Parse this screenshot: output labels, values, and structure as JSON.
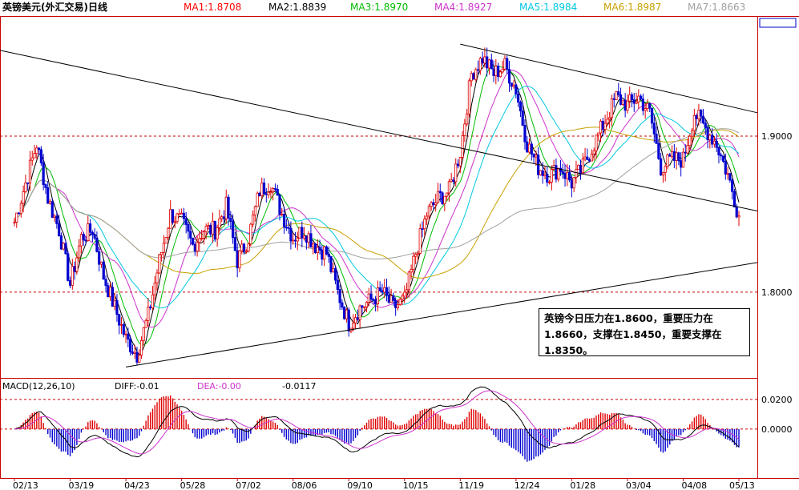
{
  "header": {
    "title": "英镑美元(外汇交易)日线",
    "ma": [
      {
        "label": "MA1:1.8708",
        "color": "#ff0000"
      },
      {
        "label": "MA2:1.8839",
        "color": "#000000"
      },
      {
        "label": "MA3:1.8970",
        "color": "#00bb00"
      },
      {
        "label": "MA4:1.8927",
        "color": "#cc33cc"
      },
      {
        "label": "MA5:1.8984",
        "color": "#00c8e0"
      },
      {
        "label": "MA6:1.8987",
        "color": "#c8a000"
      },
      {
        "label": "MA7:1.8663",
        "color": "#a0a0a0"
      }
    ]
  },
  "note": {
    "lines": [
      "英镑今日压力在1.8600，重要压力在",
      "1.8660，支撑在1.8450，重要支撑在",
      "1.8350。"
    ]
  },
  "macd": {
    "label": "MACD(12,26,10)",
    "diff": "DIFF:-0.01",
    "dea": "DEA:-0.00",
    "value": "-0.0117"
  },
  "chart_data": [
    {
      "type": "candlestick",
      "title": "英镑美元(外汇交易)日线",
      "y_ticks": [
        "1.8000",
        "1.9000"
      ],
      "x_ticks": [
        "02/13",
        "03/19",
        "04/23",
        "05/28",
        "07/02",
        "08/06",
        "09/10",
        "10/15",
        "11/19",
        "12/24",
        "01/28",
        "03/04",
        "04/08",
        "05/13"
      ],
      "ylim": [
        1.745,
        1.9765
      ],
      "last_close": 1.849,
      "trendlines": [
        {
          "label": "down-channel-upper",
          "from": [
            "start",
            1.955
          ],
          "to": [
            "05/13",
            1.852
          ]
        },
        {
          "label": "down-channel-right-upper",
          "from": [
            "11/19",
            1.959
          ],
          "to": [
            "05/13",
            1.915
          ]
        },
        {
          "label": "up-support",
          "from": [
            "04/23",
            1.752
          ],
          "to": [
            "05/13",
            1.819
          ]
        }
      ],
      "reference_lines": [
        1.8,
        1.9
      ],
      "series": [
        {
          "name": "MA1",
          "value": 1.8708
        },
        {
          "name": "MA2",
          "value": 1.8839
        },
        {
          "name": "MA3",
          "value": 1.897
        },
        {
          "name": "MA4",
          "value": 1.8927
        },
        {
          "name": "MA5",
          "value": 1.8984
        },
        {
          "name": "MA6",
          "value": 1.8987
        },
        {
          "name": "MA7",
          "value": 1.8663
        }
      ],
      "price_path": [
        [
          "02/13",
          1.845
        ],
        [
          "02/20",
          1.87
        ],
        [
          "02/27",
          1.895
        ],
        [
          "03/05",
          1.86
        ],
        [
          "03/12",
          1.84
        ],
        [
          "03/19",
          1.805
        ],
        [
          "03/26",
          1.835
        ],
        [
          "04/02",
          1.84
        ],
        [
          "04/09",
          1.81
        ],
        [
          "04/16",
          1.79
        ],
        [
          "04/23",
          1.77
        ],
        [
          "04/30",
          1.76
        ],
        [
          "05/07",
          1.785
        ],
        [
          "05/14",
          1.82
        ],
        [
          "05/21",
          1.85
        ],
        [
          "05/28",
          1.845
        ],
        [
          "06/04",
          1.83
        ],
        [
          "06/11",
          1.84
        ],
        [
          "06/18",
          1.84
        ],
        [
          "06/25",
          1.855
        ],
        [
          "07/02",
          1.82
        ],
        [
          "07/09",
          1.835
        ],
        [
          "07/16",
          1.865
        ],
        [
          "07/23",
          1.87
        ],
        [
          "07/30",
          1.85
        ],
        [
          "08/06",
          1.835
        ],
        [
          "08/13",
          1.84
        ],
        [
          "08/20",
          1.83
        ],
        [
          "08/27",
          1.825
        ],
        [
          "09/03",
          1.8
        ],
        [
          "09/10",
          1.78
        ],
        [
          "09/17",
          1.79
        ],
        [
          "09/24",
          1.795
        ],
        [
          "10/01",
          1.8
        ],
        [
          "10/08",
          1.79
        ],
        [
          "10/15",
          1.795
        ],
        [
          "10/22",
          1.825
        ],
        [
          "10/29",
          1.85
        ],
        [
          "11/05",
          1.86
        ],
        [
          "11/12",
          1.865
        ],
        [
          "11/19",
          1.89
        ],
        [
          "11/26",
          1.94
        ],
        [
          "12/03",
          1.95
        ],
        [
          "12/10",
          1.94
        ],
        [
          "12/17",
          1.945
        ],
        [
          "12/24",
          1.93
        ],
        [
          "12/31",
          1.895
        ],
        [
          "01/07",
          1.88
        ],
        [
          "01/14",
          1.875
        ],
        [
          "01/21",
          1.88
        ],
        [
          "01/28",
          1.87
        ],
        [
          "02/04",
          1.88
        ],
        [
          "02/11",
          1.895
        ],
        [
          "02/18",
          1.91
        ],
        [
          "02/25",
          1.925
        ],
        [
          "03/04",
          1.92
        ],
        [
          "03/11",
          1.925
        ],
        [
          "03/18",
          1.915
        ],
        [
          "03/25",
          1.88
        ],
        [
          "04/01",
          1.885
        ],
        [
          "04/08",
          1.885
        ],
        [
          "04/15",
          1.915
        ],
        [
          "04/22",
          1.905
        ],
        [
          "04/29",
          1.895
        ],
        [
          "05/06",
          1.875
        ],
        [
          "05/13",
          1.849
        ]
      ]
    },
    {
      "type": "bar",
      "title": "MACD(12,26,10)",
      "y_ticks": [
        "0.0200",
        "0.0000"
      ],
      "ylim": [
        -0.033,
        0.034
      ],
      "reference_lines": [
        0.02,
        0.0
      ],
      "series": [
        {
          "name": "DIFF",
          "value": -0.01
        },
        {
          "name": "DEA",
          "value": -0.0
        }
      ],
      "last_value": -0.0117
    }
  ]
}
